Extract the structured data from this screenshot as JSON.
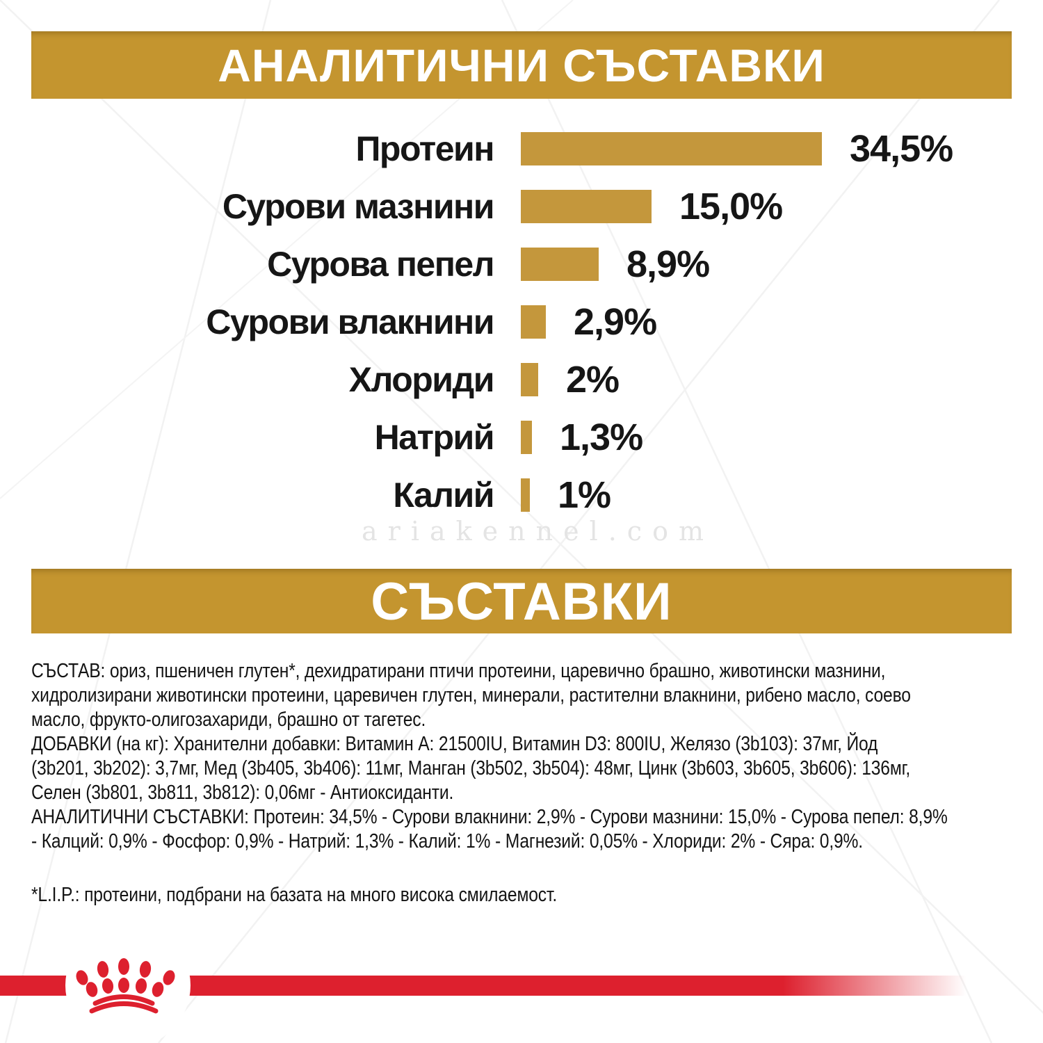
{
  "colors": {
    "gold_banner": "#C4952F",
    "gold_bar": "#C4973C",
    "red": "#DD202E",
    "text": "#141414",
    "watermark_gray": "#E4E4E4"
  },
  "header_banner": {
    "label": "АНАЛИТИЧНИ СЪСТАВКИ"
  },
  "ingredients_banner": {
    "label": "СЪСТАВКИ"
  },
  "chart_data": {
    "type": "bar",
    "orientation": "horizontal",
    "title": "АНАЛИТИЧНИ СЪСТАВКИ",
    "categories": [
      "Протеин",
      "Сурови мазнини",
      "Сурова пепел",
      "Сурови влакнини",
      "Хлориди",
      "Натрий",
      "Калий"
    ],
    "values": [
      34.5,
      15.0,
      8.9,
      2.9,
      2,
      1.3,
      1
    ],
    "value_labels": [
      "34,5%",
      "15,0%",
      "8,9%",
      "2,9%",
      "2%",
      "1,3%",
      "1%"
    ],
    "unit": "%",
    "xlim": [
      0,
      40
    ],
    "grid": false,
    "legend": "none",
    "bar_color": "#C4973C"
  },
  "watermark_text": "ariakennel.com",
  "body": {
    "composition": "СЪСТАВ: ориз, пшеничен глутен*, дехидратирани птичи протеини, царевично брашно, животински мазнини,\nхидролизирани животински протеини, царевичен глутен, минерали, растителни влакнини, рибено масло, соево\nмасло, фрукто-олигозахариди, брашно от тагетес.",
    "additives": "ДОБАВКИ (на кг): Хранителни добавки: Витамин A: 21500IU, Витамин D3: 800IU, Желязо (3b103): 37мг, Йод\n(3b201, 3b202): 3,7мг, Мед (3b405, 3b406): 11мг, Манган (3b502, 3b504): 48мг, Цинк (3b603, 3b605, 3b606): 136мг,\nСелен (3b801, 3b811, 3b812): 0,06мг - Антиоксиданти.",
    "analytical": "АНАЛИТИЧНИ СЪСТАВКИ: Протеин: 34,5% - Сурови влакнини: 2,9% - Сурови мазнини: 15,0% - Сурова пепел: 8,9%\n- Калций: 0,9% - Фосфор: 0,9% - Натрий: 1,3% - Калий: 1% - Магнезий: 0,05% - Хлориди: 2% - Сяра: 0,9%.",
    "footnote": "*L.I.P.: протеини, подбрани на базата на много висока смилаемост."
  },
  "logo": {
    "name": "royal-canin-crown"
  }
}
